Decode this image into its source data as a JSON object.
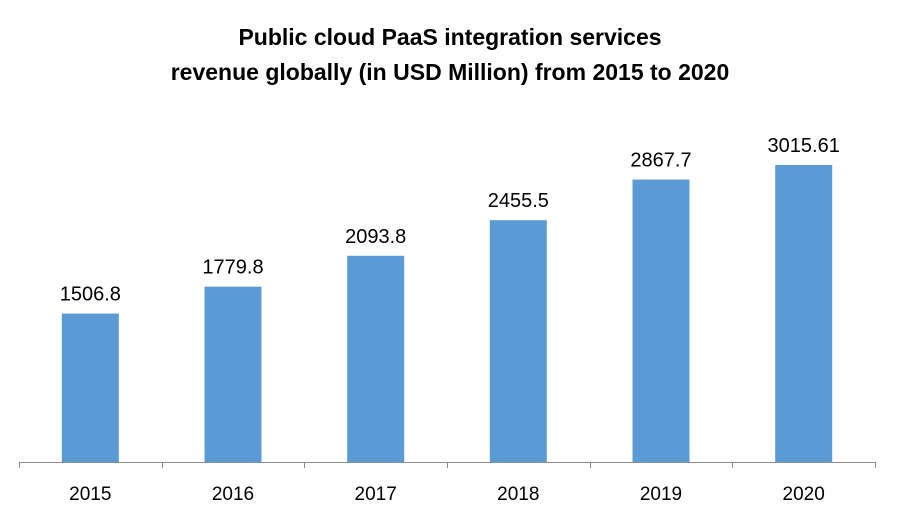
{
  "chart_data": {
    "type": "bar",
    "title": {
      "line1": "Public cloud PaaS integration services",
      "line2": "revenue globally (in USD Million) from 2015 to 2020"
    },
    "xlabel": "",
    "ylabel": "",
    "categories": [
      "2015",
      "2016",
      "2017",
      "2018",
      "2019",
      "2020"
    ],
    "values": [
      1506.8,
      1779.8,
      2093.8,
      2455.5,
      2867.7,
      3015.61
    ],
    "value_labels": [
      "1506.8",
      "1779.8",
      "2093.8",
      "2455.5",
      "2867.7",
      "3015.61"
    ],
    "ylim": [
      0,
      3015.61
    ],
    "grid": false,
    "legend": "none",
    "bar_color": "#5B9BD5",
    "axis_color": "#8C8C8C"
  }
}
